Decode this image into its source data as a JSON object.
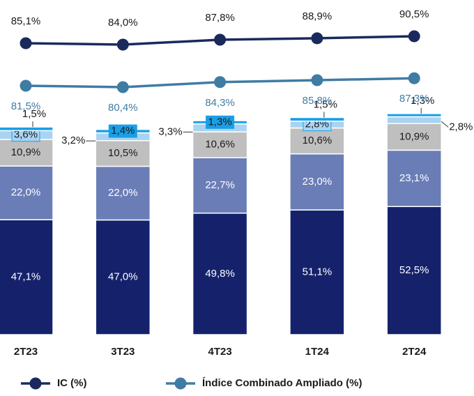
{
  "chart_data": {
    "type": "combo",
    "categories": [
      "2T23",
      "3T23",
      "4T23",
      "1T24",
      "2T24"
    ],
    "lines": [
      {
        "name": "IC (%)",
        "color": "#1b2a5c",
        "values": [
          85.1,
          84.0,
          87.8,
          88.9,
          90.5
        ],
        "value_labels": [
          "85,1%",
          "84,0%",
          "87,8%",
          "88,9%",
          "90,5%"
        ]
      },
      {
        "name": "Índice Combinado Ampliado (%)",
        "color": "#3f7ca4",
        "values": [
          81.5,
          80.4,
          84.3,
          85.8,
          87.3
        ],
        "value_labels": [
          "81,5%",
          "80,4%",
          "84,3%",
          "85,8%",
          "87,3%"
        ]
      }
    ],
    "bars": [
      {
        "color": "#15226b",
        "values": [
          47.1,
          47.0,
          49.8,
          51.1,
          52.5
        ],
        "value_labels": [
          "47,1%",
          "47,0%",
          "49,8%",
          "51,1%",
          "52,5%"
        ]
      },
      {
        "color": "#6a7db6",
        "values": [
          22.0,
          22.0,
          22.7,
          23.0,
          23.1
        ],
        "value_labels": [
          "22,0%",
          "22,0%",
          "22,7%",
          "23,0%",
          "23,1%"
        ]
      },
      {
        "color": "#bfbfbf",
        "values": [
          10.9,
          10.5,
          10.6,
          10.6,
          10.9
        ],
        "value_labels": [
          "10,9%",
          "10,5%",
          "10,6%",
          "10,6%",
          "10,9%"
        ]
      },
      {
        "color": "#aad3f2",
        "values": [
          3.6,
          3.2,
          3.3,
          2.8,
          2.8
        ],
        "value_labels": [
          "3,6%",
          "3,2%",
          "3,3%",
          "2,8%",
          "2,8%"
        ]
      },
      {
        "color": "#1a9fe6",
        "values": [
          1.5,
          1.4,
          1.3,
          1.5,
          1.3
        ],
        "value_labels": [
          "1,5%",
          "1,4%",
          "1,3%",
          "1,5%",
          "1,3%"
        ]
      }
    ],
    "ylim": [
      19,
      93
    ]
  }
}
